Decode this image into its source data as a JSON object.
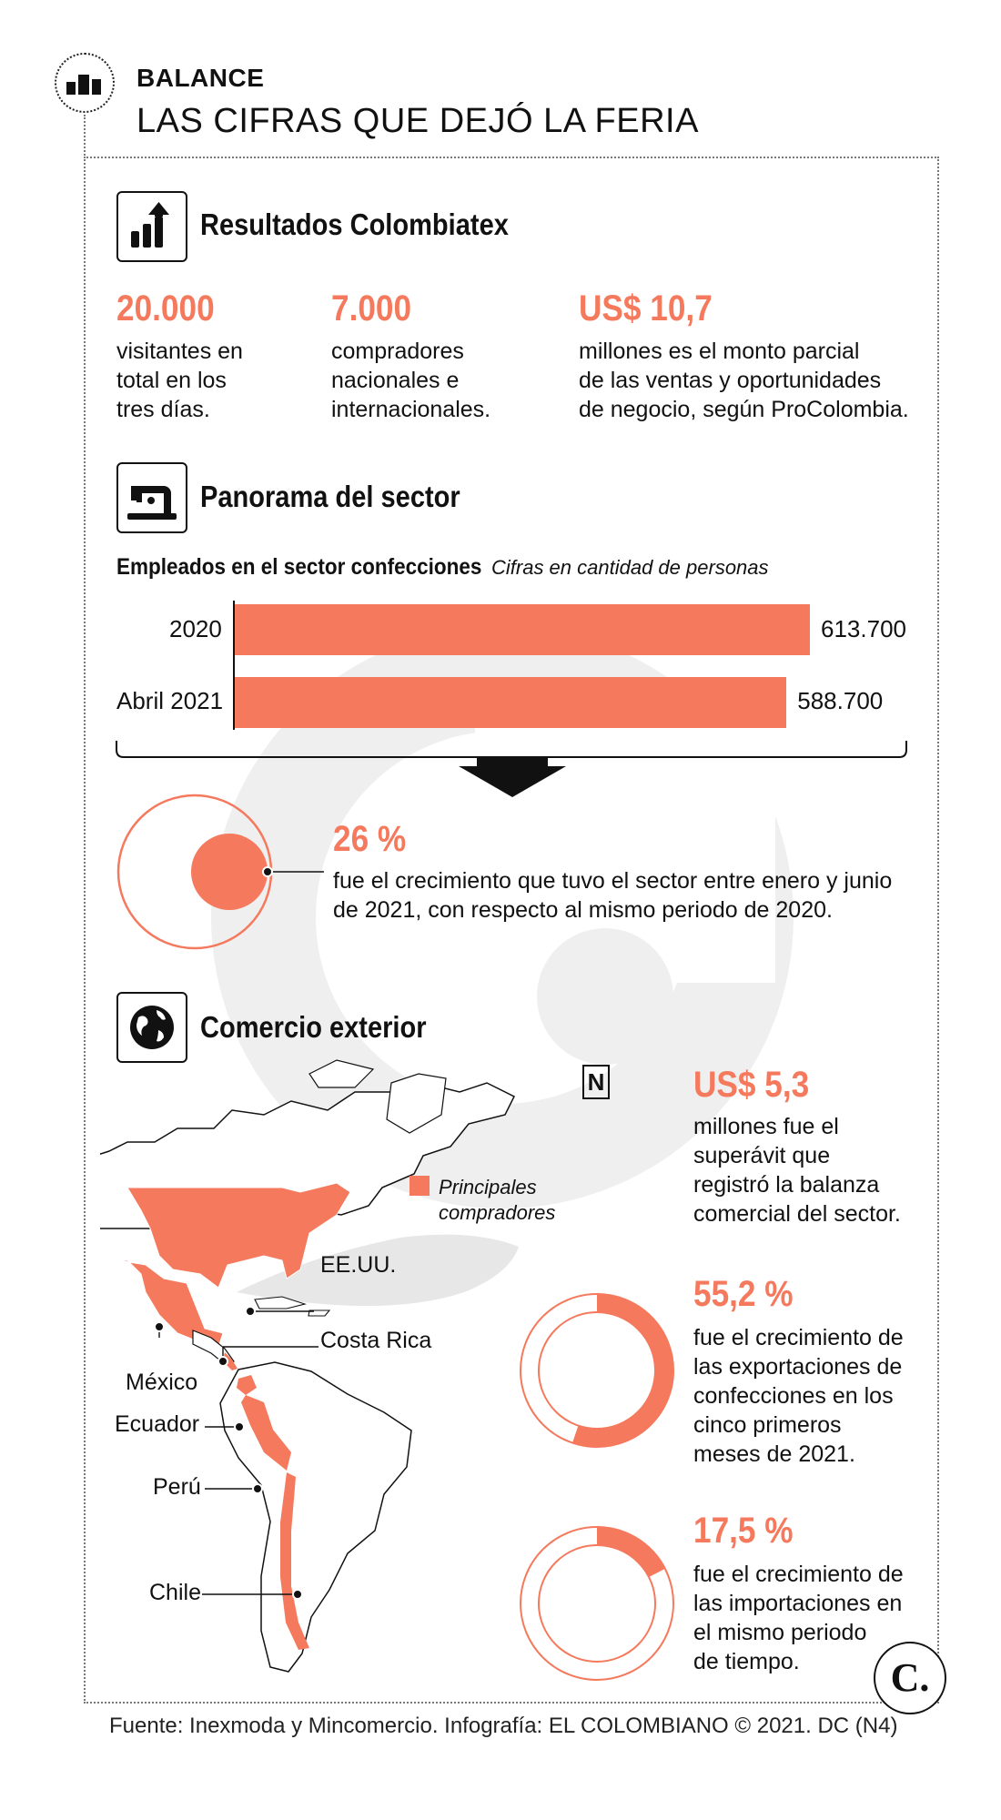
{
  "header": {
    "kicker": "BALANCE",
    "title": "LAS CIFRAS QUE DEJÓ LA FERIA"
  },
  "section_results": {
    "title": "Resultados Colombiatex",
    "stats": [
      {
        "value": "20.000",
        "lines": [
          "visitantes en",
          "total en los",
          "tres días."
        ]
      },
      {
        "value": "7.000",
        "lines": [
          "compradores",
          "nacionales e",
          "internacionales."
        ]
      },
      {
        "value": "US$ 10,7",
        "lines": [
          "millones es el monto parcial",
          "de las ventas y oportunidades",
          "de negocio, según ProColombia."
        ]
      }
    ]
  },
  "section_sector": {
    "title": "Panorama del sector",
    "chart_title": "Empleados en el sector confecciones",
    "chart_subtitle": "Cifras en cantidad de personas",
    "growth_value": "26 %",
    "growth_lines": [
      "fue el crecimiento que tuvo el sector entre enero y junio",
      "de 2021, con respecto al mismo periodo de 2020."
    ]
  },
  "chart_data": [
    {
      "type": "bar",
      "orientation": "horizontal",
      "title": "Empleados en el sector confecciones",
      "subtitle": "Cifras en cantidad de personas",
      "categories": [
        "2020",
        "Abril 2021"
      ],
      "values": [
        613700,
        588700
      ],
      "value_labels": [
        "613.700",
        "588.700"
      ],
      "xlim": [
        0,
        613700
      ]
    },
    {
      "type": "pie",
      "title": "55,2 %",
      "values": [
        55.2,
        44.8
      ]
    },
    {
      "type": "pie",
      "title": "17,5 %",
      "values": [
        17.5,
        82.5
      ]
    }
  ],
  "section_trade": {
    "title": "Comercio exterior",
    "north": "N",
    "legend": [
      "Principales",
      "compradores"
    ],
    "countries": [
      "EE.UU.",
      "México",
      "Costa Rica",
      "Ecuador",
      "Perú",
      "Chile"
    ],
    "surplus_value": "US$ 5,3",
    "surplus_lines": [
      "millones fue el",
      "superávit que",
      "registró la balanza",
      "comercial del sector."
    ],
    "exports_value": "55,2 %",
    "exports_lines": [
      "fue el crecimiento de",
      "las exportaciones de",
      "confecciones en los",
      "cinco primeros",
      "meses de 2021."
    ],
    "imports_value": "17,5 %",
    "imports_lines": [
      "fue el crecimiento de",
      "las importaciones en",
      "el mismo periodo",
      "de tiempo."
    ]
  },
  "footer": "Fuente: Inexmoda y Mincomercio. Infografía: EL COLOMBIANO © 2021. DC (N4)",
  "logo": "C.",
  "colors": {
    "accent": "#f5795c",
    "text": "#111111",
    "watermark": "#efefef"
  }
}
